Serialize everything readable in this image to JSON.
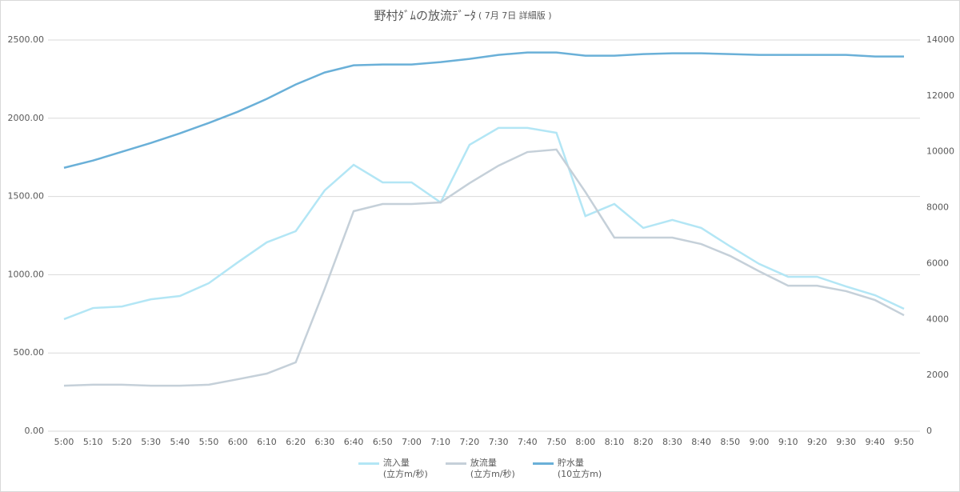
{
  "chart_data": {
    "type": "line",
    "title": "野村ﾀﾞﾑの放流ﾃﾞｰﾀ",
    "subtitle": "( 7月 7日 詳細版 )",
    "categories": [
      "5:00",
      "5:10",
      "5:20",
      "5:30",
      "5:40",
      "5:50",
      "6:00",
      "6:10",
      "6:20",
      "6:30",
      "6:40",
      "6:50",
      "7:00",
      "7:10",
      "7:20",
      "7:30",
      "7:40",
      "7:50",
      "8:00",
      "8:10",
      "8:20",
      "8:30",
      "8:40",
      "8:50",
      "9:00",
      "9:10",
      "9:20",
      "9:30",
      "9:40",
      "9:50"
    ],
    "ylim": [
      0,
      2500
    ],
    "yticks": [
      {
        "value": 0,
        "label": "0.00"
      },
      {
        "value": 500,
        "label": "500.00"
      },
      {
        "value": 1000,
        "label": "1000.00"
      },
      {
        "value": 1500,
        "label": "1500.00"
      },
      {
        "value": 2000,
        "label": "2000.00"
      },
      {
        "value": 2500,
        "label": "2500.00"
      }
    ],
    "y2lim": [
      0,
      14000
    ],
    "y2ticks": [
      0,
      2000,
      4000,
      6000,
      8000,
      10000,
      12000,
      14000
    ],
    "grid": true,
    "legend": "bottom",
    "series": [
      {
        "name": "流入量\n(立方m/秒)",
        "color": "#b3e6f5",
        "values": [
          716,
          787,
          797,
          843,
          864,
          946,
          1079,
          1207,
          1278,
          1539,
          1702,
          1590,
          1590,
          1462,
          1830,
          1938,
          1938,
          1907,
          1375,
          1452,
          1299,
          1350,
          1299,
          1181,
          1069,
          987,
          987,
          925,
          869,
          782
        ]
      },
      {
        "name": "放流量\n(立方m/秒)",
        "color": "#c5d0d9",
        "values": [
          291,
          297,
          297,
          291,
          291,
          297,
          332,
          368,
          440,
          910,
          1406,
          1452,
          1452,
          1462,
          1585,
          1697,
          1784,
          1800,
          1529,
          1237,
          1237,
          1237,
          1196,
          1120,
          1022,
          930,
          930,
          895,
          838,
          741
        ]
      },
      {
        "name": "貯水量\n(10立方m)",
        "color": "#6ab0d8",
        "axis": "y2",
        "values": [
          9427,
          9685,
          10000,
          10315,
          10659,
          11032,
          11433,
          11891,
          12407,
          12837,
          13095,
          13124,
          13124,
          13209,
          13324,
          13467,
          13553,
          13553,
          13438,
          13438,
          13496,
          13524,
          13524,
          13496,
          13467,
          13467,
          13467,
          13467,
          13410,
          13410
        ]
      }
    ]
  }
}
